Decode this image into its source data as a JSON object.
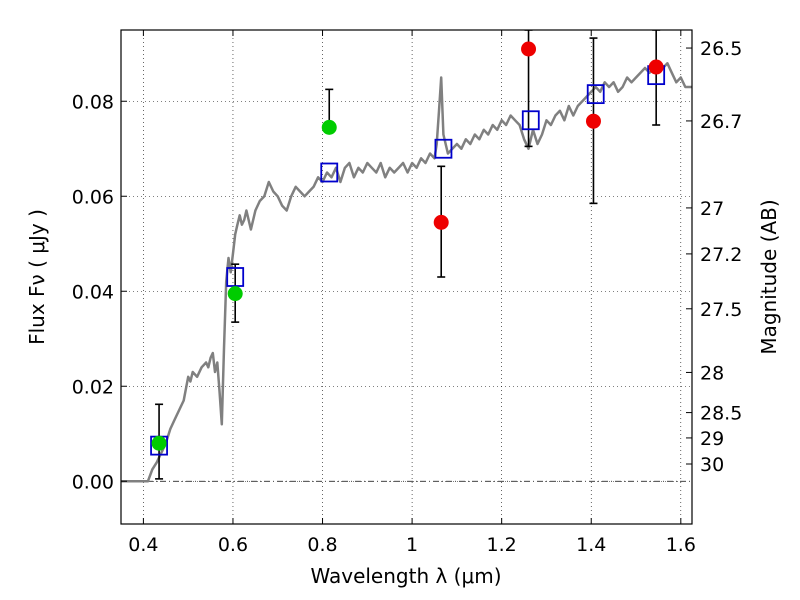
{
  "chart_data": {
    "type": "scatter",
    "xlabel": "Wavelength  λ (μm)",
    "ylabel": "Flux  Fν  ( μJy )",
    "y2label": "Magnitude (AB)",
    "xlim": [
      0.35,
      1.625
    ],
    "ylim": [
      -0.009,
      0.095
    ],
    "grid": true,
    "x_ticks": [
      0.4,
      0.6,
      0.8,
      1.0,
      1.2,
      1.4,
      1.6
    ],
    "x_tick_labels": [
      "0.4",
      "0.6",
      "0.8",
      "1",
      "1.2",
      "1.4",
      "1.6"
    ],
    "y_ticks": [
      0.0,
      0.02,
      0.04,
      0.06,
      0.08
    ],
    "y_tick_labels": [
      "0.00",
      "0.02",
      "0.04",
      "0.06",
      "0.08"
    ],
    "mag_ticks": [
      "26.5",
      "26.7",
      "27",
      "27.2",
      "27.5",
      "28",
      "28.5",
      "29",
      "30"
    ],
    "series": [
      {
        "kind": "line",
        "color": "#808080",
        "points": [
          [
            0.35,
            0.0
          ],
          [
            0.41,
            0.0
          ],
          [
            0.42,
            0.0025
          ],
          [
            0.43,
            0.004
          ],
          [
            0.44,
            0.006
          ],
          [
            0.45,
            0.008
          ],
          [
            0.46,
            0.011
          ],
          [
            0.47,
            0.013
          ],
          [
            0.48,
            0.015
          ],
          [
            0.49,
            0.017
          ],
          [
            0.5,
            0.022
          ],
          [
            0.505,
            0.021
          ],
          [
            0.51,
            0.023
          ],
          [
            0.52,
            0.022
          ],
          [
            0.53,
            0.024
          ],
          [
            0.54,
            0.025
          ],
          [
            0.545,
            0.024
          ],
          [
            0.55,
            0.026
          ],
          [
            0.555,
            0.027
          ],
          [
            0.56,
            0.023
          ],
          [
            0.565,
            0.025
          ],
          [
            0.57,
            0.019
          ],
          [
            0.575,
            0.012
          ],
          [
            0.58,
            0.028
          ],
          [
            0.585,
            0.042
          ],
          [
            0.59,
            0.047
          ],
          [
            0.595,
            0.044
          ],
          [
            0.6,
            0.048
          ],
          [
            0.605,
            0.052
          ],
          [
            0.61,
            0.054
          ],
          [
            0.615,
            0.056
          ],
          [
            0.62,
            0.054
          ],
          [
            0.625,
            0.055
          ],
          [
            0.63,
            0.057
          ],
          [
            0.64,
            0.053
          ],
          [
            0.65,
            0.057
          ],
          [
            0.66,
            0.059
          ],
          [
            0.67,
            0.06
          ],
          [
            0.68,
            0.063
          ],
          [
            0.69,
            0.061
          ],
          [
            0.7,
            0.06
          ],
          [
            0.71,
            0.058
          ],
          [
            0.72,
            0.057
          ],
          [
            0.73,
            0.06
          ],
          [
            0.74,
            0.062
          ],
          [
            0.75,
            0.061
          ],
          [
            0.76,
            0.06
          ],
          [
            0.77,
            0.061
          ],
          [
            0.78,
            0.062
          ],
          [
            0.79,
            0.064
          ],
          [
            0.8,
            0.063
          ],
          [
            0.81,
            0.065
          ],
          [
            0.82,
            0.064
          ],
          [
            0.83,
            0.066
          ],
          [
            0.84,
            0.063
          ],
          [
            0.85,
            0.066
          ],
          [
            0.86,
            0.067
          ],
          [
            0.87,
            0.064
          ],
          [
            0.88,
            0.066
          ],
          [
            0.89,
            0.065
          ],
          [
            0.9,
            0.067
          ],
          [
            0.91,
            0.066
          ],
          [
            0.92,
            0.065
          ],
          [
            0.93,
            0.067
          ],
          [
            0.94,
            0.064
          ],
          [
            0.95,
            0.066
          ],
          [
            0.96,
            0.065
          ],
          [
            0.97,
            0.066
          ],
          [
            0.98,
            0.067
          ],
          [
            0.99,
            0.065
          ],
          [
            1.0,
            0.067
          ],
          [
            1.01,
            0.066
          ],
          [
            1.02,
            0.068
          ],
          [
            1.03,
            0.067
          ],
          [
            1.04,
            0.069
          ],
          [
            1.05,
            0.068
          ],
          [
            1.055,
            0.071
          ],
          [
            1.06,
            0.078
          ],
          [
            1.065,
            0.085
          ],
          [
            1.07,
            0.073
          ],
          [
            1.08,
            0.069
          ],
          [
            1.09,
            0.07
          ],
          [
            1.1,
            0.071
          ],
          [
            1.11,
            0.07
          ],
          [
            1.12,
            0.072
          ],
          [
            1.13,
            0.071
          ],
          [
            1.14,
            0.073
          ],
          [
            1.15,
            0.072
          ],
          [
            1.16,
            0.074
          ],
          [
            1.17,
            0.073
          ],
          [
            1.18,
            0.075
          ],
          [
            1.19,
            0.074
          ],
          [
            1.2,
            0.076
          ],
          [
            1.21,
            0.075
          ],
          [
            1.22,
            0.077
          ],
          [
            1.23,
            0.076
          ],
          [
            1.24,
            0.075
          ],
          [
            1.25,
            0.072
          ],
          [
            1.26,
            0.07
          ],
          [
            1.27,
            0.074
          ],
          [
            1.28,
            0.071
          ],
          [
            1.29,
            0.073
          ],
          [
            1.3,
            0.076
          ],
          [
            1.31,
            0.075
          ],
          [
            1.32,
            0.077
          ],
          [
            1.33,
            0.078
          ],
          [
            1.34,
            0.076
          ],
          [
            1.35,
            0.079
          ],
          [
            1.36,
            0.077
          ],
          [
            1.37,
            0.079
          ],
          [
            1.38,
            0.08
          ],
          [
            1.39,
            0.081
          ],
          [
            1.4,
            0.082
          ],
          [
            1.41,
            0.083
          ],
          [
            1.42,
            0.082
          ],
          [
            1.43,
            0.084
          ],
          [
            1.44,
            0.083
          ],
          [
            1.45,
            0.084
          ],
          [
            1.46,
            0.082
          ],
          [
            1.47,
            0.083
          ],
          [
            1.48,
            0.085
          ],
          [
            1.49,
            0.084
          ],
          [
            1.5,
            0.085
          ],
          [
            1.51,
            0.086
          ],
          [
            1.52,
            0.087
          ],
          [
            1.53,
            0.086
          ],
          [
            1.54,
            0.087
          ],
          [
            1.55,
            0.086
          ],
          [
            1.56,
            0.087
          ],
          [
            1.57,
            0.088
          ],
          [
            1.58,
            0.086
          ],
          [
            1.59,
            0.084
          ],
          [
            1.6,
            0.085
          ],
          [
            1.61,
            0.083
          ],
          [
            1.625,
            0.083
          ]
        ]
      },
      {
        "kind": "square",
        "color": "#0000cc",
        "x": [
          0.435,
          0.605,
          0.815,
          1.07,
          1.265,
          1.41,
          1.545
        ],
        "y": [
          0.0075,
          0.043,
          0.065,
          0.07,
          0.076,
          0.0815,
          0.0855
        ]
      },
      {
        "kind": "circle",
        "color": "#00cc00",
        "x": [
          0.435,
          0.605,
          0.815
        ],
        "y": [
          0.008,
          0.0395,
          0.0745
        ],
        "err_low": [
          0.0005,
          0.0335,
          0.0745
        ],
        "err_high": [
          0.0162,
          0.0457,
          0.0825
        ]
      },
      {
        "kind": "circle",
        "color": "#ee0000",
        "x": [
          1.065,
          1.26,
          1.405,
          1.545
        ],
        "y": [
          0.0545,
          0.091,
          0.0758,
          0.0872
        ],
        "err_low": [
          0.043,
          0.0705,
          0.0585,
          0.075
        ],
        "err_high": [
          0.0663,
          0.095,
          0.0933,
          0.095
        ]
      }
    ]
  }
}
